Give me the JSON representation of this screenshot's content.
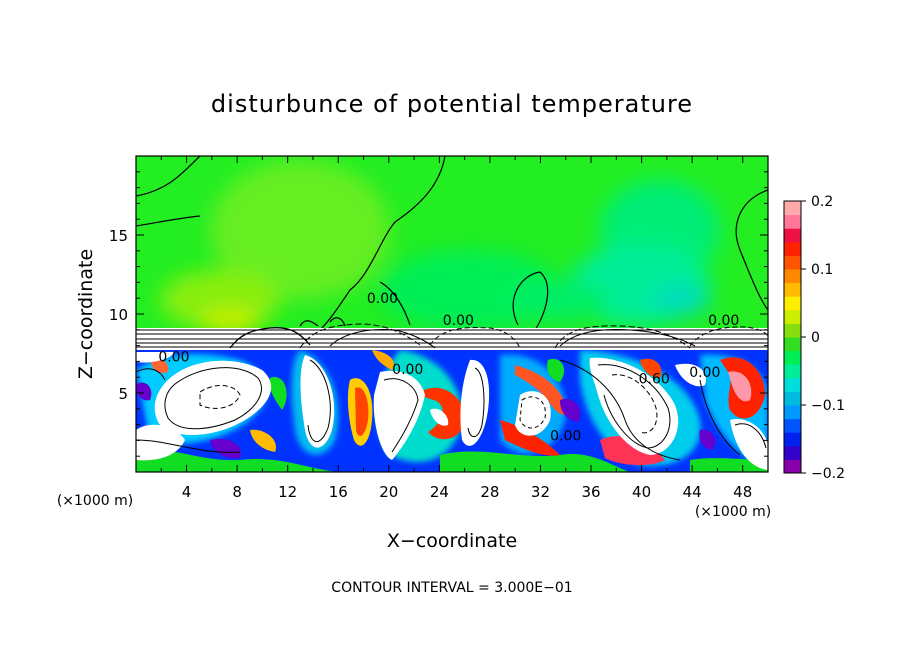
{
  "chart_data": {
    "type": "heatmap",
    "title": "disturbunce of potential temperature",
    "xlabel": "X−coordinate",
    "ylabel": "Z−coordinate",
    "x_unit_left": "(×1000 m)",
    "x_unit_right": "(×1000 m)",
    "footer": "CONTOUR INTERVAL = 3.000E−01",
    "xlim": [
      0,
      50
    ],
    "ylim": [
      0,
      20
    ],
    "x_ticks": [
      4,
      8,
      12,
      16,
      20,
      24,
      28,
      32,
      36,
      40,
      44,
      48
    ],
    "x_tick_labels": [
      "4",
      "8",
      "12",
      "16",
      "20",
      "24",
      "28",
      "32",
      "36",
      "40",
      "44",
      "48"
    ],
    "y_ticks": [
      5,
      10,
      15
    ],
    "y_tick_labels": [
      "5",
      "10",
      "15"
    ],
    "colorbar": {
      "range": [
        -0.2,
        0.2
      ],
      "tick_values": [
        0.2,
        0.1,
        0,
        -0.1,
        -0.2
      ],
      "tick_labels": [
        "0.2",
        "0.1",
        "0",
        "−0.1",
        "−0.2"
      ],
      "colors": [
        "#8800aa",
        "#3300cc",
        "#0022ee",
        "#0055ff",
        "#0099ff",
        "#00bbdd",
        "#00dddd",
        "#00ee99",
        "#00ee55",
        "#33dd22",
        "#88dd11",
        "#ccee00",
        "#ffee00",
        "#ffbb00",
        "#ff8800",
        "#ff5500",
        "#ff2200",
        "#ee1144",
        "#ff7799",
        "#ffaaaa"
      ]
    },
    "contour_labels": [
      {
        "text": "0.00",
        "x": 19.5,
        "z": 10.7
      },
      {
        "text": "0.00",
        "x": 25.5,
        "z": 9.3
      },
      {
        "text": "0.00",
        "x": 46.5,
        "z": 9.3
      },
      {
        "text": "0.00",
        "x": 3.0,
        "z": 7.0
      },
      {
        "text": "0.00",
        "x": 21.5,
        "z": 6.2
      },
      {
        "text": "0.60",
        "x": 41.0,
        "z": 5.6
      },
      {
        "text": "0.00",
        "x": 45.0,
        "z": 6.0
      },
      {
        "text": "0.00",
        "x": 34.0,
        "z": 2.0
      }
    ]
  }
}
